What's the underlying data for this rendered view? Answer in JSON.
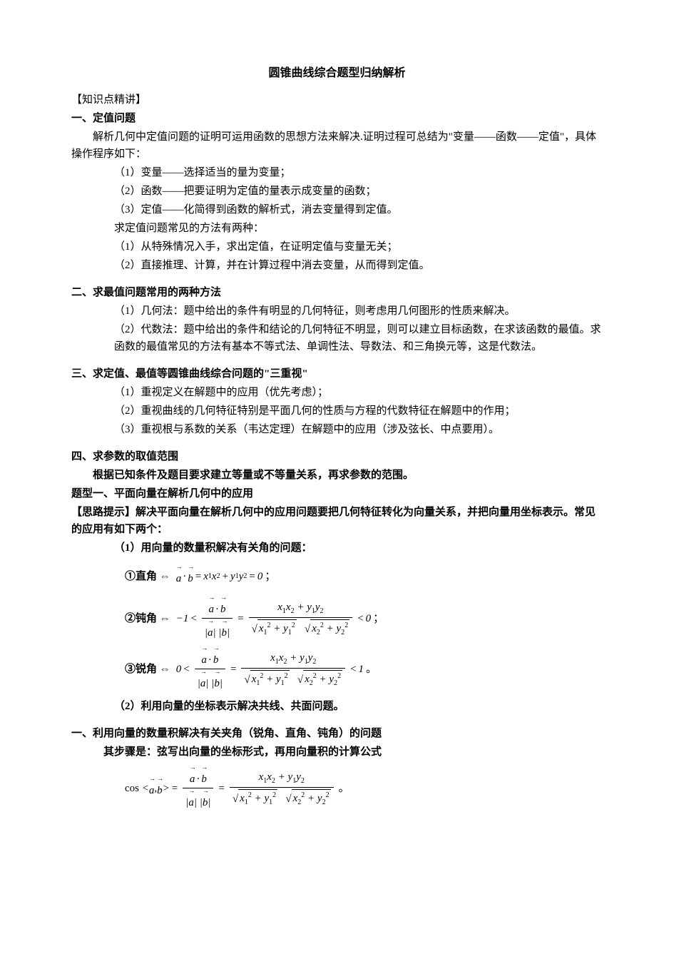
{
  "title": "圆锥曲线综合题型归纳解析",
  "s0": {
    "heading": "【知识点精讲】"
  },
  "s1": {
    "heading": "一、定值问题",
    "intro": "解析几何中定值问题的证明可运用函数的思想方法来解决.证明过程可总结为\"变量——函数——定值\"，具体操作程序如下：",
    "i1": "（1）变量——选择适当的量为变量；",
    "i2": "（2）函数——把要证明为定值的量表示成变量的函数；",
    "i3": "（3）定值——化简得到函数的解析式，消去变量得到定值。",
    "sub": "求定值问题常见的方法有两种：",
    "m1": "（1）从特殊情况入手，求出定值，在证明定值与变量无关；",
    "m2": "（2）直接推理、计算，并在计算过程中消去变量，从而得到定值。"
  },
  "s2": {
    "heading": "二、求最值问题常用的两种方法",
    "i1": "（1）几何法：题中给出的条件有明显的几何特征，则考虑用几何图形的性质来解决。",
    "i2": "（2）代数法：题中给出的条件和结论的几何特征不明显，则可以建立目标函数，在求该函数的最值。求函数的最值常见的方法有基本不等式法、单调性法、导数法、和三角换元等，这是代数法。"
  },
  "s3": {
    "heading": "三、求定值、最值等圆锥曲线综合问题的\"三重视\"",
    "i1": "（1）重视定义在解题中的应用（优先考虑）；",
    "i2": "（2）重视曲线的几何特征特别是平面几何的性质与方程的代数特征在解题中的作用；",
    "i3": "（3）重视根与系数的关系（韦达定理）在解题中的应用（涉及弦长、中点要用）。"
  },
  "s4": {
    "heading": "四、求参数的取值范围",
    "p1": "根据已知条件及题目要求建立等量或不等量关系，再求参数的范围。"
  },
  "t1": {
    "heading": "题型一、平面向量在解析几何中的应用",
    "hint": "【思路提示】解决平面向量在解析几何中的应用问题要把几何特征转化为向量关系，并把向量用坐标表示。常见的应用有如下两个：",
    "sub1": "（1）用向量的数量积解决有关角的问题：",
    "f1_label": "①直角",
    "f2_label": "②钝角",
    "f3_label": "③锐角",
    "sub2": "（2）利用向量的坐标表示解决共线、共面问题。"
  },
  "t2": {
    "heading": "一、利用向量的数量积解决有关夹角（锐角、直角、钝角）的问题",
    "p1": "其步骤是：弦写出向量的坐标形式，再用向量积的计算公式"
  },
  "style": {
    "background_color": "#ffffff",
    "text_color": "#000000",
    "title_fontsize": 16,
    "body_fontsize": 15,
    "font_family": "SimSun"
  }
}
